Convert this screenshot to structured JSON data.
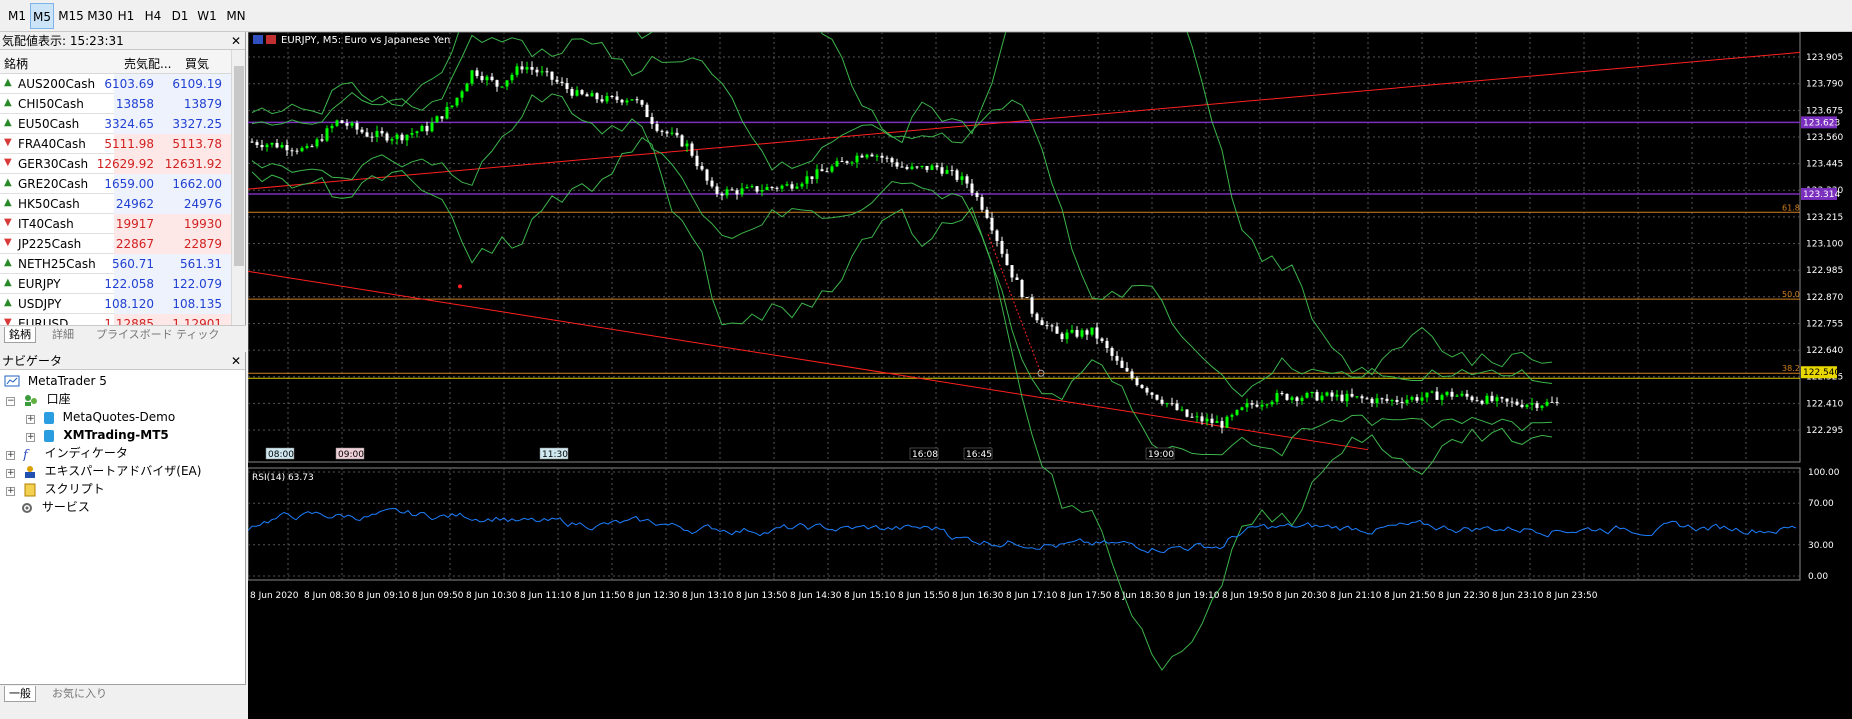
{
  "toolbar": {
    "timeframes": [
      "M1",
      "M5",
      "M15",
      "M30",
      "H1",
      "H4",
      "D1",
      "W1",
      "MN"
    ],
    "active": "M5"
  },
  "market_watch": {
    "title": "気配値表示: 15:23:31",
    "columns": [
      "銘柄",
      "売気配...",
      "買気配..."
    ],
    "rows": [
      {
        "symbol": "AUS200Cash",
        "bid": "6103.69",
        "ask": "6109.19",
        "dir": "up",
        "bid_color": "blue",
        "ask_color": "blue"
      },
      {
        "symbol": "CHI50Cash",
        "bid": "13858",
        "ask": "13879",
        "dir": "up",
        "bid_color": "blue",
        "ask_color": "blue"
      },
      {
        "symbol": "EU50Cash",
        "bid": "3324.65",
        "ask": "3327.25",
        "dir": "up",
        "bid_color": "blue",
        "ask_color": "blue"
      },
      {
        "symbol": "FRA40Cash",
        "bid": "5111.98",
        "ask": "5113.78",
        "dir": "down",
        "bid_color": "red",
        "ask_color": "red"
      },
      {
        "symbol": "GER30Cash",
        "bid": "12629.92",
        "ask": "12631.92",
        "dir": "down",
        "bid_color": "red",
        "ask_color": "red"
      },
      {
        "symbol": "GRE20Cash",
        "bid": "1659.00",
        "ask": "1662.00",
        "dir": "up",
        "bid_color": "blue",
        "ask_color": "blue"
      },
      {
        "symbol": "HK50Cash",
        "bid": "24962",
        "ask": "24976",
        "dir": "up",
        "bid_color": "blue",
        "ask_color": "blue"
      },
      {
        "symbol": "IT40Cash",
        "bid": "19917",
        "ask": "19930",
        "dir": "down",
        "bid_color": "red",
        "ask_color": "red"
      },
      {
        "symbol": "JP225Cash",
        "bid": "22867",
        "ask": "22879",
        "dir": "down",
        "bid_color": "red",
        "ask_color": "red"
      },
      {
        "symbol": "NETH25Cash",
        "bid": "560.71",
        "ask": "561.31",
        "dir": "up",
        "bid_color": "blue",
        "ask_color": "blue"
      },
      {
        "symbol": "EURJPY",
        "bid": "122.058",
        "ask": "122.079",
        "dir": "up",
        "bid_color": "blue",
        "ask_color": "blue"
      },
      {
        "symbol": "USDJPY",
        "bid": "108.120",
        "ask": "108.135",
        "dir": "up",
        "bid_color": "blue",
        "ask_color": "blue"
      },
      {
        "symbol": "EURUSD",
        "bid": "1.12885",
        "ask": "1.12901",
        "dir": "down",
        "bid_color": "red",
        "ask_color": "red"
      }
    ],
    "tabs": [
      "銘柄",
      "詳細",
      "プライスボード",
      "ティック"
    ]
  },
  "navigator": {
    "title": "ナビゲータ",
    "root": "MetaTrader 5",
    "accounts_label": "口座",
    "accounts": [
      "MetaQuotes-Demo",
      "XMTrading-MT5"
    ],
    "indicators": "インディケータ",
    "experts": "エキスパートアドバイザ(EA)",
    "scripts": "スクリプト",
    "services": "サービス",
    "tabs": [
      "一般",
      "お気に入り"
    ]
  },
  "chart": {
    "symbol_title": "EURJPY, M5:  Euro vs Japanese Yen",
    "price_labels": [
      "123.905",
      "123.790",
      "123.675",
      "123.560",
      "123.445",
      "123.330",
      "123.215",
      "123.100",
      "122.985",
      "122.870",
      "122.755",
      "122.640",
      "122.525",
      "122.410",
      "122.295"
    ],
    "level_tags": [
      {
        "text": "123.623",
        "color": "#7b2fbe"
      },
      {
        "text": "123.314",
        "color": "#7b2fbe"
      },
      {
        "text": "122.540",
        "color": "#e8d800"
      }
    ],
    "fibo_labels": [
      "61.8",
      "50.0",
      "38.2"
    ],
    "time_markers": [
      "08:00",
      "09:00",
      "11:30",
      "16:08",
      "16:45",
      "19:00"
    ],
    "rsi_title": "RSI(14) 63.73",
    "rsi_labels": [
      "100.00",
      "70.00",
      "30.00",
      "0.00"
    ],
    "x_labels": [
      "8 Jun 2020",
      "8 Jun 08:30",
      "8 Jun 09:10",
      "8 Jun 09:50",
      "8 Jun 10:30",
      "8 Jun 11:10",
      "8 Jun 11:50",
      "8 Jun 12:30",
      "8 Jun 13:10",
      "8 Jun 13:50",
      "8 Jun 14:30",
      "8 Jun 15:10",
      "8 Jun 15:50",
      "8 Jun 16:30",
      "8 Jun 17:10",
      "8 Jun 17:50",
      "8 Jun 18:30",
      "8 Jun 19:10",
      "8 Jun 19:50",
      "8 Jun 20:30",
      "8 Jun 21:10",
      "8 Jun 21:50",
      "8 Jun 22:30",
      "8 Jun 23:10",
      "8 Jun 23:50"
    ],
    "colors": {
      "bg": "#000000",
      "grid": "#555555",
      "bull": "#00ff00",
      "bear": "#ffffff",
      "bollinger": "#3cb44b",
      "trend": "#ff2020",
      "purple": "#7b2fbe",
      "fibo": "#d08020",
      "rsi": "#1e7fff"
    }
  }
}
